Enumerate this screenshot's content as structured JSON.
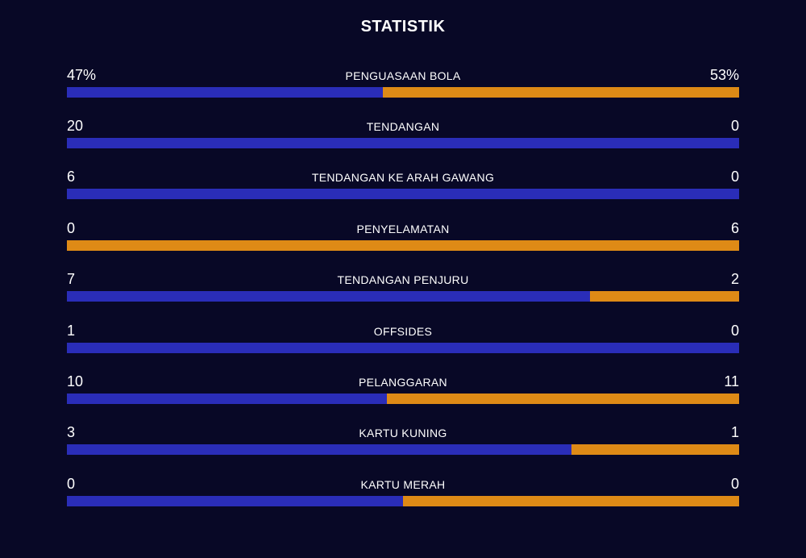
{
  "title": "STATISTIK",
  "colors": {
    "background": "#080826",
    "home_bar": "#2a2db8",
    "away_bar": "#de8a16"
  },
  "stats": [
    {
      "label": "PENGUASAAN BOLA",
      "home": "47%",
      "away": "53%",
      "home_share": 0.47
    },
    {
      "label": "TENDANGAN",
      "home": "20",
      "away": "0",
      "home_share": 1.0
    },
    {
      "label": "TENDANGAN KE ARAH GAWANG",
      "home": "6",
      "away": "0",
      "home_share": 1.0
    },
    {
      "label": "PENYELAMATAN",
      "home": "0",
      "away": "6",
      "home_share": 0.0
    },
    {
      "label": "TENDANGAN PENJURU",
      "home": "7",
      "away": "2",
      "home_share": 0.778
    },
    {
      "label": "OFFSIDES",
      "home": "1",
      "away": "0",
      "home_share": 1.0
    },
    {
      "label": "PELANGGARAN",
      "home": "10",
      "away": "11",
      "home_share": 0.476
    },
    {
      "label": "KARTU KUNING",
      "home": "3",
      "away": "1",
      "home_share": 0.75
    },
    {
      "label": "KARTU MERAH",
      "home": "0",
      "away": "0",
      "home_share": 0.5
    }
  ]
}
